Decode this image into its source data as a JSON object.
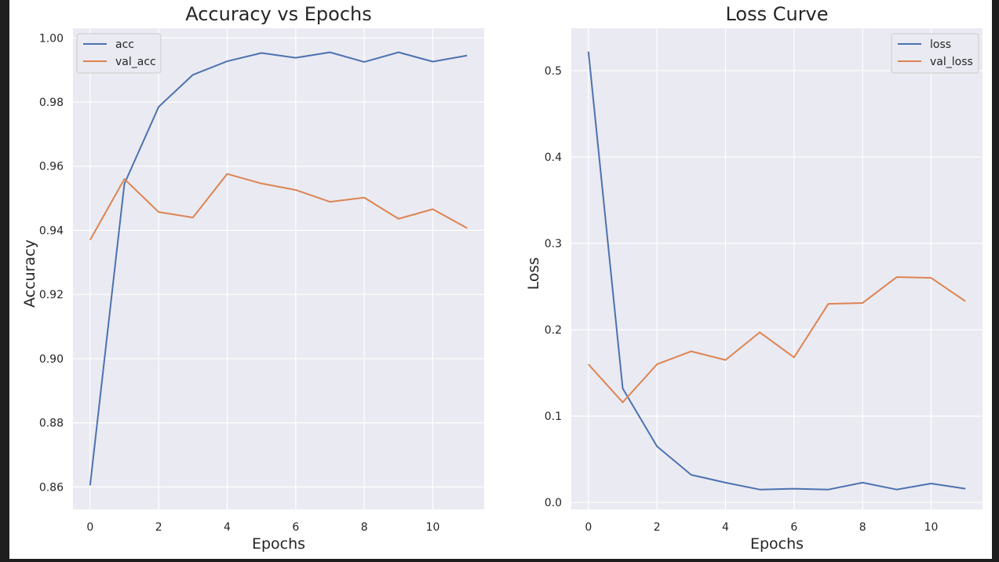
{
  "colors": {
    "plot_background": "#eaeaf2",
    "grid": "#ffffff",
    "series_blue": "#4c72b0",
    "series_orange": "#dd8452",
    "text": "#262626"
  },
  "chart_data": [
    {
      "type": "line",
      "title": "Accuracy vs Epochs",
      "xlabel": "Epochs",
      "ylabel": "Accuracy",
      "x": [
        0,
        1,
        2,
        3,
        4,
        5,
        6,
        7,
        8,
        9,
        10,
        11
      ],
      "xlim": [
        -0.5,
        11.5
      ],
      "ylim": [
        0.853,
        1.003
      ],
      "xticks": [
        0,
        2,
        4,
        6,
        8,
        10
      ],
      "yticks": [
        0.86,
        0.88,
        0.9,
        0.92,
        0.94,
        0.96,
        0.98,
        1.0
      ],
      "ytick_labels": [
        "0.86",
        "0.88",
        "0.90",
        "0.92",
        "0.94",
        "0.96",
        "0.98",
        "1.00"
      ],
      "grid": true,
      "legend_position": "top-left",
      "series": [
        {
          "name": "acc",
          "color": "#4c72b0",
          "values": [
            0.8605,
            0.9545,
            0.9785,
            0.9885,
            0.9927,
            0.9953,
            0.9938,
            0.9955,
            0.9925,
            0.9955,
            0.9926,
            0.9945
          ]
        },
        {
          "name": "val_acc",
          "color": "#dd8452",
          "values": [
            0.937,
            0.956,
            0.9457,
            0.944,
            0.9576,
            0.9546,
            0.9526,
            0.9489,
            0.9502,
            0.9436,
            0.9466,
            0.9407
          ]
        }
      ]
    },
    {
      "type": "line",
      "title": "Loss Curve",
      "xlabel": "Epochs",
      "ylabel": "Loss",
      "x": [
        0,
        1,
        2,
        3,
        4,
        5,
        6,
        7,
        8,
        9,
        10,
        11
      ],
      "xlim": [
        -0.5,
        11.5
      ],
      "ylim": [
        -0.008,
        0.549
      ],
      "xticks": [
        0,
        2,
        4,
        6,
        8,
        10
      ],
      "yticks": [
        0.0,
        0.1,
        0.2,
        0.3,
        0.4,
        0.5
      ],
      "ytick_labels": [
        "0.0",
        "0.1",
        "0.2",
        "0.3",
        "0.4",
        "0.5"
      ],
      "grid": true,
      "legend_position": "top-right",
      "series": [
        {
          "name": "loss",
          "color": "#4c72b0",
          "values": [
            0.522,
            0.132,
            0.065,
            0.032,
            0.023,
            0.015,
            0.016,
            0.015,
            0.023,
            0.015,
            0.022,
            0.016
          ]
        },
        {
          "name": "val_loss",
          "color": "#dd8452",
          "values": [
            0.16,
            0.116,
            0.16,
            0.175,
            0.165,
            0.197,
            0.168,
            0.23,
            0.231,
            0.261,
            0.26,
            0.233
          ]
        }
      ]
    }
  ]
}
